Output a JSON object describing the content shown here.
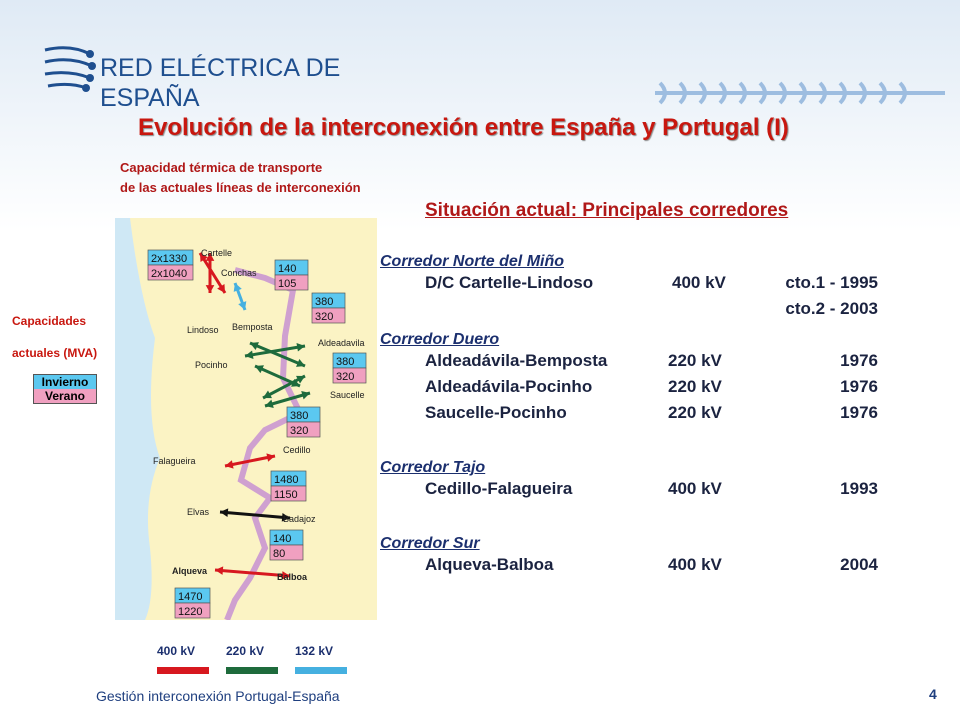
{
  "header": {
    "company_lines": [
      "RED ELÉCTRICA DE",
      "ESPAÑA"
    ],
    "title": "Evolución de la interconexión entre España y Portugal (I)"
  },
  "map": {
    "caption_lines": [
      "Capacidad térmica de transporte",
      "de las actuales líneas de interconexión"
    ],
    "legend": {
      "title_lines": [
        "Capacidades",
        "actuales  (MVA)"
      ],
      "winter": "Invierno",
      "summer": "Verano"
    },
    "places": [
      "Cartelle",
      "Conchas",
      "Lindoso",
      "Bemposta",
      "Aldeadavila",
      "Pocinho",
      "Saucelle",
      "Cedillo",
      "Falagueira",
      "Elvas",
      "Badajoz",
      "Alqueva",
      "Balboa"
    ],
    "capacities": [
      {
        "winter": "2x1330",
        "summer": "2x1040"
      },
      {
        "winter": "140",
        "summer": "105"
      },
      {
        "winter": "380",
        "summer": "320"
      },
      {
        "winter": "380",
        "summer": "320"
      },
      {
        "winter": "380",
        "summer": "320"
      },
      {
        "winter": "1480",
        "summer": "1150"
      },
      {
        "winter": "140",
        "summer": "80"
      },
      {
        "winter": "1470",
        "summer": "1220"
      }
    ],
    "voltages": [
      {
        "label": "400 kV",
        "color": "#d7181f"
      },
      {
        "label": "220 kV",
        "color": "#1e6b3c"
      },
      {
        "label": "132 kV",
        "color": "#45b0e0"
      }
    ]
  },
  "situation": {
    "heading": "Situación actual: Principales corredores",
    "corridors": [
      {
        "name": "Corredor Norte del Miño",
        "lines": [
          {
            "name": "D/C Cartelle-Lindoso",
            "voltage": "400 kV",
            "dates": [
              "cto.1 - 1995",
              "cto.2 - 2003"
            ]
          }
        ]
      },
      {
        "name": "Corredor Duero",
        "lines": [
          {
            "name": "Aldeadávila-Bemposta",
            "voltage": "220 kV",
            "dates": [
              "1976"
            ]
          },
          {
            "name": "Aldeadávila-Pocinho",
            "voltage": "220 kV",
            "dates": [
              "1976"
            ]
          },
          {
            "name": "Saucelle-Pocinho",
            "voltage": "220 kV",
            "dates": [
              "1976"
            ]
          }
        ]
      },
      {
        "name": "Corredor Tajo",
        "lines": [
          {
            "name": "Cedillo-Falagueira",
            "voltage": "400 kV",
            "dates": [
              "1993"
            ]
          }
        ]
      },
      {
        "name": "Corredor Sur",
        "lines": [
          {
            "name": "Alqueva-Balboa",
            "voltage": "400 kV",
            "dates": [
              "2004"
            ]
          }
        ]
      }
    ]
  },
  "footer": {
    "text": "Gestión interconexión Portugal-España",
    "page": "4"
  }
}
